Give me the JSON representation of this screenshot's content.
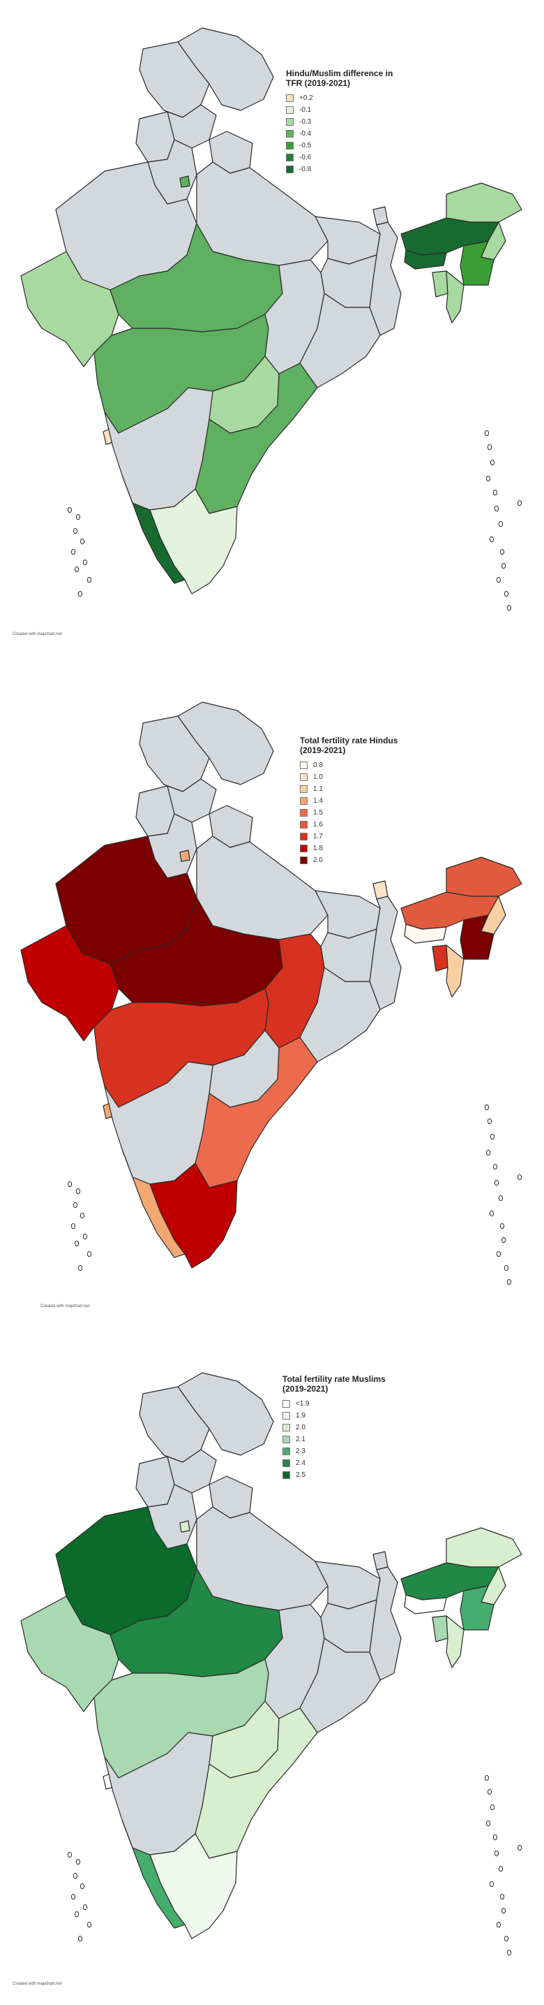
{
  "panels": [
    {
      "legend_title": "Hindu/Muslim difference in TFR (2019-2021)",
      "legend": [
        {
          "label": "+0.2",
          "color": "#f9dfc0"
        },
        {
          "label": "-0.1",
          "color": "#e2f2dc"
        },
        {
          "label": "-0.3",
          "color": "#a8d9a0"
        },
        {
          "label": "-0.4",
          "color": "#5fb060"
        },
        {
          "label": "-0.5",
          "color": "#3a9e35"
        },
        {
          "label": "-0.6",
          "color": "#25803a"
        },
        {
          "label": "-0.8",
          "color": "#186b30"
        }
      ],
      "credit": "Created with mapchart.net"
    },
    {
      "legend_title": "Total fertility rate Hindus (2019-2021)",
      "legend": [
        {
          "label": "0.8",
          "color": "#fff8ef"
        },
        {
          "label": "1.0",
          "color": "#fbe3c8"
        },
        {
          "label": "1.1",
          "color": "#f6cfa3"
        },
        {
          "label": "1.4",
          "color": "#f3a874"
        },
        {
          "label": "1.5",
          "color": "#ec6b4d"
        },
        {
          "label": "1.6",
          "color": "#e05a3d"
        },
        {
          "label": "1.7",
          "color": "#d7321f"
        },
        {
          "label": "1.8",
          "color": "#c00000"
        },
        {
          "label": "2.0",
          "color": "#7c0000"
        }
      ],
      "credit": "Created with mapchart.net"
    },
    {
      "legend_title": "Total fertility rate Muslims (2019-2021)",
      "legend": [
        {
          "label": "<1.9",
          "color": "#ffffff"
        },
        {
          "label": "1.9",
          "color": "#eef8ec"
        },
        {
          "label": "2.0",
          "color": "#d7efcf"
        },
        {
          "label": "2.1",
          "color": "#a8d9b0"
        },
        {
          "label": "2.3",
          "color": "#45ad6e"
        },
        {
          "label": "2.4",
          "color": "#228845"
        },
        {
          "label": "2.5",
          "color": "#0b6b2a"
        }
      ],
      "credit": "Created with mapchart.net"
    }
  ],
  "fills": [
    {
      "jk": "#d3d8dc",
      "ladakh": "#d3d8dc",
      "hp": "#d3d8dc",
      "punjab": "#d3d8dc",
      "uk": "#d3d8dc",
      "haryana": "#d3d8dc",
      "delhi": "#5fb060",
      "rajasthan": "#d3d8dc",
      "up": "#d3d8dc",
      "bihar": "#d3d8dc",
      "sikkim": "#d3d8dc",
      "arunachal": "#a8d9a0",
      "assam": "#186b30",
      "meghalaya": "#186b30",
      "nagaland": "#a8d9a0",
      "manipur": "#3a9e35",
      "mizoram": "#a8d9a0",
      "tripura": "#a8d9a0",
      "wb": "#d3d8dc",
      "jharkhand": "#d3d8dc",
      "odisha": "#d3d8dc",
      "chhattisgarh": "#d3d8dc",
      "mp": "#5fb060",
      "gujarat": "#a8d9a0",
      "maharashtra": "#5fb060",
      "telangana": "#a8d9a0",
      "ap": "#5fb060",
      "karnataka": "#d3d8dc",
      "goa": "#f9dfc0",
      "kerala": "#186b30",
      "tn": "#e2f2dc",
      "islands": "#ffffff"
    },
    {
      "jk": "#d3d8dc",
      "ladakh": "#d3d8dc",
      "hp": "#d3d8dc",
      "punjab": "#d3d8dc",
      "uk": "#d3d8dc",
      "haryana": "#d3d8dc",
      "delhi": "#f3a874",
      "rajasthan": "#7c0000",
      "up": "#d3d8dc",
      "bihar": "#d3d8dc",
      "sikkim": "#fbe3c8",
      "arunachal": "#e05a3d",
      "assam": "#e05a3d",
      "meghalaya": "#fff8ef",
      "nagaland": "#f6cfa3",
      "manipur": "#7c0000",
      "mizoram": "#f6cfa3",
      "tripura": "#d7321f",
      "wb": "#d3d8dc",
      "jharkhand": "#d3d8dc",
      "odisha": "#d3d8dc",
      "chhattisgarh": "#d7321f",
      "mp": "#7c0000",
      "gujarat": "#c00000",
      "maharashtra": "#d7321f",
      "telangana": "#d3d8dc",
      "ap": "#ec6b4d",
      "karnataka": "#d3d8dc",
      "goa": "#f3a874",
      "kerala": "#f3a874",
      "tn": "#c00000",
      "islands": "#ffffff"
    },
    {
      "jk": "#d3d8dc",
      "ladakh": "#d3d8dc",
      "hp": "#d3d8dc",
      "punjab": "#d3d8dc",
      "uk": "#d3d8dc",
      "haryana": "#d3d8dc",
      "delhi": "#d7efcf",
      "rajasthan": "#0b6b2a",
      "up": "#d3d8dc",
      "bihar": "#d3d8dc",
      "sikkim": "#d3d8dc",
      "arunachal": "#d7efcf",
      "assam": "#228845",
      "meghalaya": "#ffffff",
      "nagaland": "#d7efcf",
      "manipur": "#45ad6e",
      "mizoram": "#d7efcf",
      "tripura": "#a8d9b0",
      "wb": "#d3d8dc",
      "jharkhand": "#d3d8dc",
      "odisha": "#d3d8dc",
      "chhattisgarh": "#d3d8dc",
      "mp": "#228845",
      "gujarat": "#a8d9b0",
      "maharashtra": "#a8d9b0",
      "telangana": "#d7efcf",
      "ap": "#d7efcf",
      "karnataka": "#d3d8dc",
      "goa": "#ffffff",
      "kerala": "#45ad6e",
      "tn": "#eef8ec",
      "islands": "#ffffff"
    }
  ]
}
